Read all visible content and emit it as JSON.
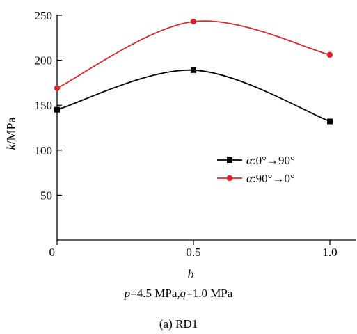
{
  "chart_data": {
    "type": "line",
    "xlabel": "b",
    "ylabel_var": "k",
    "ylabel_unit": "/MPa",
    "x_ticks": [
      {
        "value": 0,
        "label": "0"
      },
      {
        "value": 0.5,
        "label": "0.5"
      },
      {
        "value": 1.0,
        "label": "1.0"
      }
    ],
    "y_ticks": [
      {
        "value": 50,
        "label": "50"
      },
      {
        "value": 100,
        "label": "100"
      },
      {
        "value": 150,
        "label": "150"
      },
      {
        "value": 200,
        "label": "200"
      },
      {
        "value": 250,
        "label": "250"
      }
    ],
    "xlim": [
      0,
      1.05
    ],
    "ylim": [
      0,
      260
    ],
    "grid": false,
    "legend_placement": "right",
    "series": [
      {
        "name_var": "α",
        "name_rest": ":0°→90°",
        "color": "#000000",
        "marker": "square",
        "x": [
          0,
          0.5,
          1.0
        ],
        "y": [
          145,
          189,
          132
        ]
      },
      {
        "name_var": "α",
        "name_rest": ":90°→0°",
        "color": "#d7282f",
        "marker": "circle",
        "x": [
          0,
          0.5,
          1.0
        ],
        "y": [
          169,
          243,
          206
        ]
      }
    ]
  },
  "caption": {
    "p_var": "p",
    "p_text": "=4.5 MPa,",
    "q_var": "q",
    "q_text": "=1.0 MPa",
    "panel": "(a) RD1"
  }
}
